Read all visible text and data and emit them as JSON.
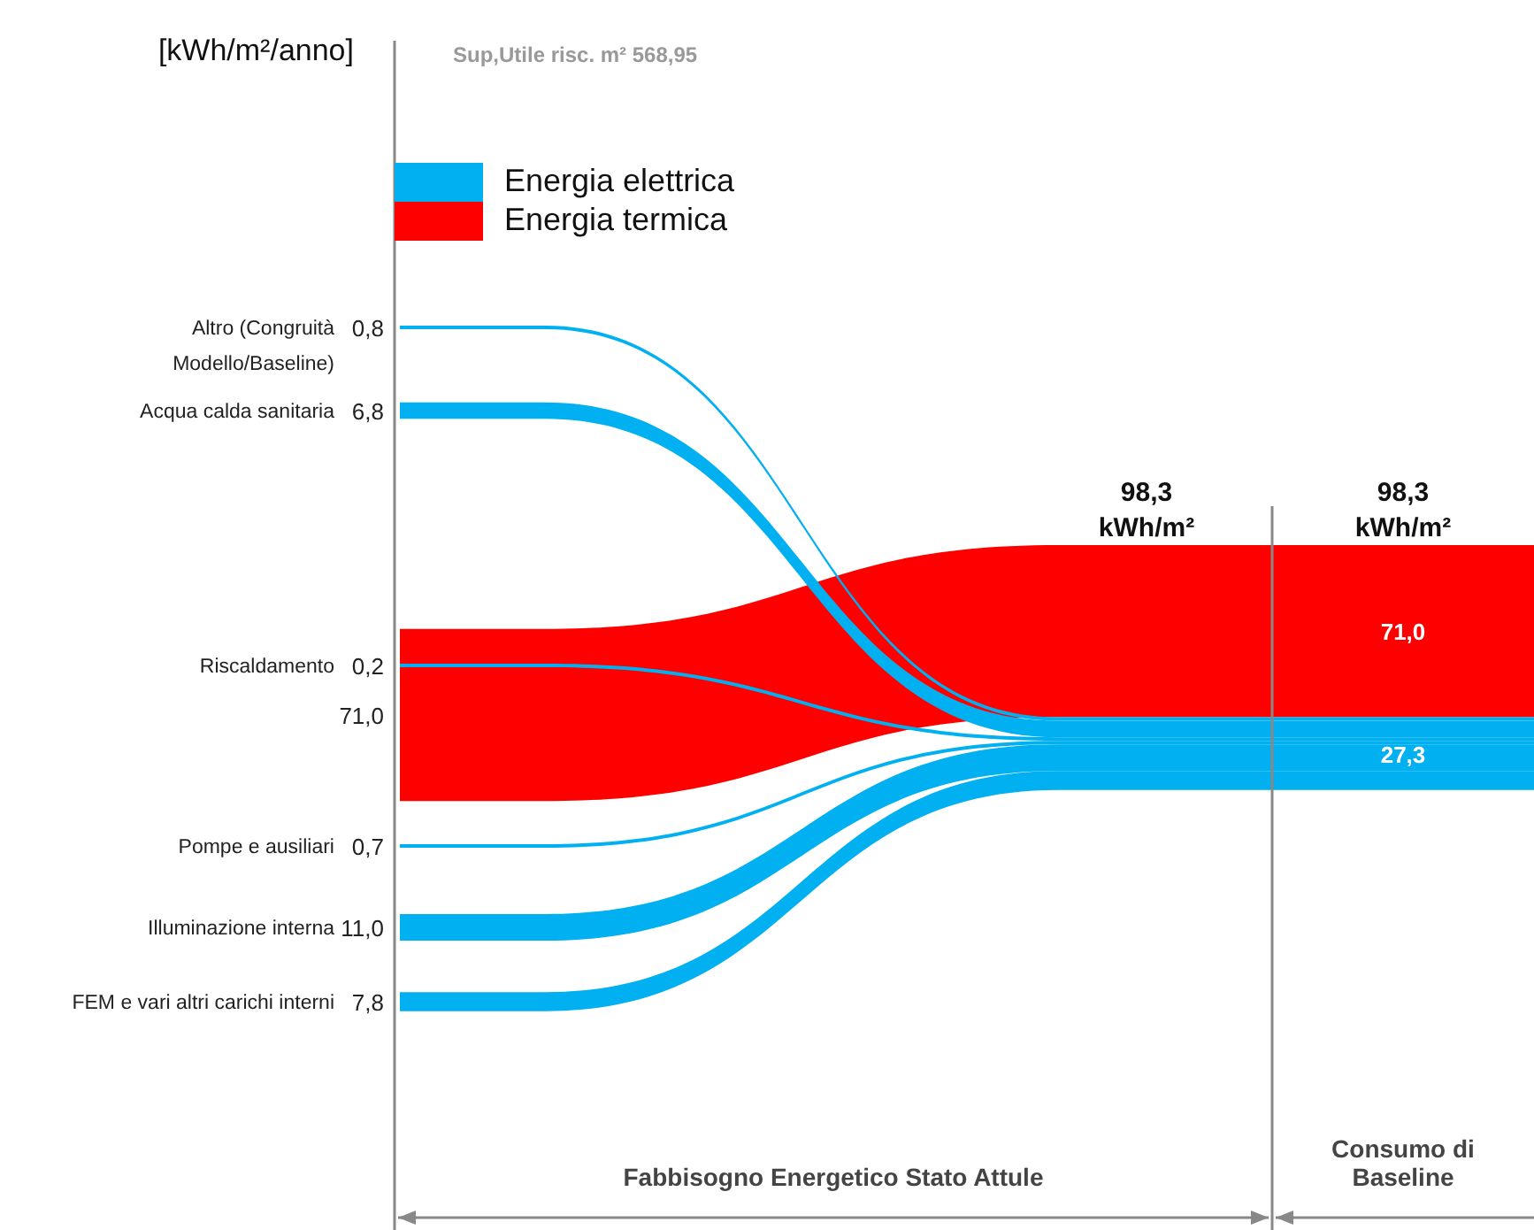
{
  "chart_data": {
    "type": "other",
    "ylabel": "[kWh/m²/anno]",
    "subtitle": "Sup,Utile risc. m² 568,95",
    "categories": [
      "Altro (Congruità Modello/Baseline)",
      "Acqua calda sanitaria",
      "Riscaldamento",
      "Pompe e ausiliari",
      "Illuminazione interna",
      "FEM e vari altri carichi interni"
    ],
    "series": [
      {
        "name": "Energia elettrica",
        "color": "#00b0f0",
        "values": [
          0.8,
          6.8,
          0.2,
          0.7,
          11.0,
          7.8
        ],
        "value_labels": [
          "0,8",
          "6,8",
          "0,2",
          "0,7",
          "11,0",
          "7,8"
        ]
      },
      {
        "name": "Energia termica",
        "color": "#ff0000",
        "values": [
          null,
          null,
          71.0,
          null,
          null,
          null
        ],
        "value_labels": [
          null,
          null,
          "71,0",
          null,
          null,
          null
        ]
      }
    ],
    "totals": [
      "98,3 kWh/m²",
      "98,3 kWh/m²"
    ],
    "annotations": [
      "Fabbisogno Energetico Stato Attule",
      "Consumo di Baseline",
      "27,3",
      "71,0"
    ],
    "legend": "top left"
  }
}
